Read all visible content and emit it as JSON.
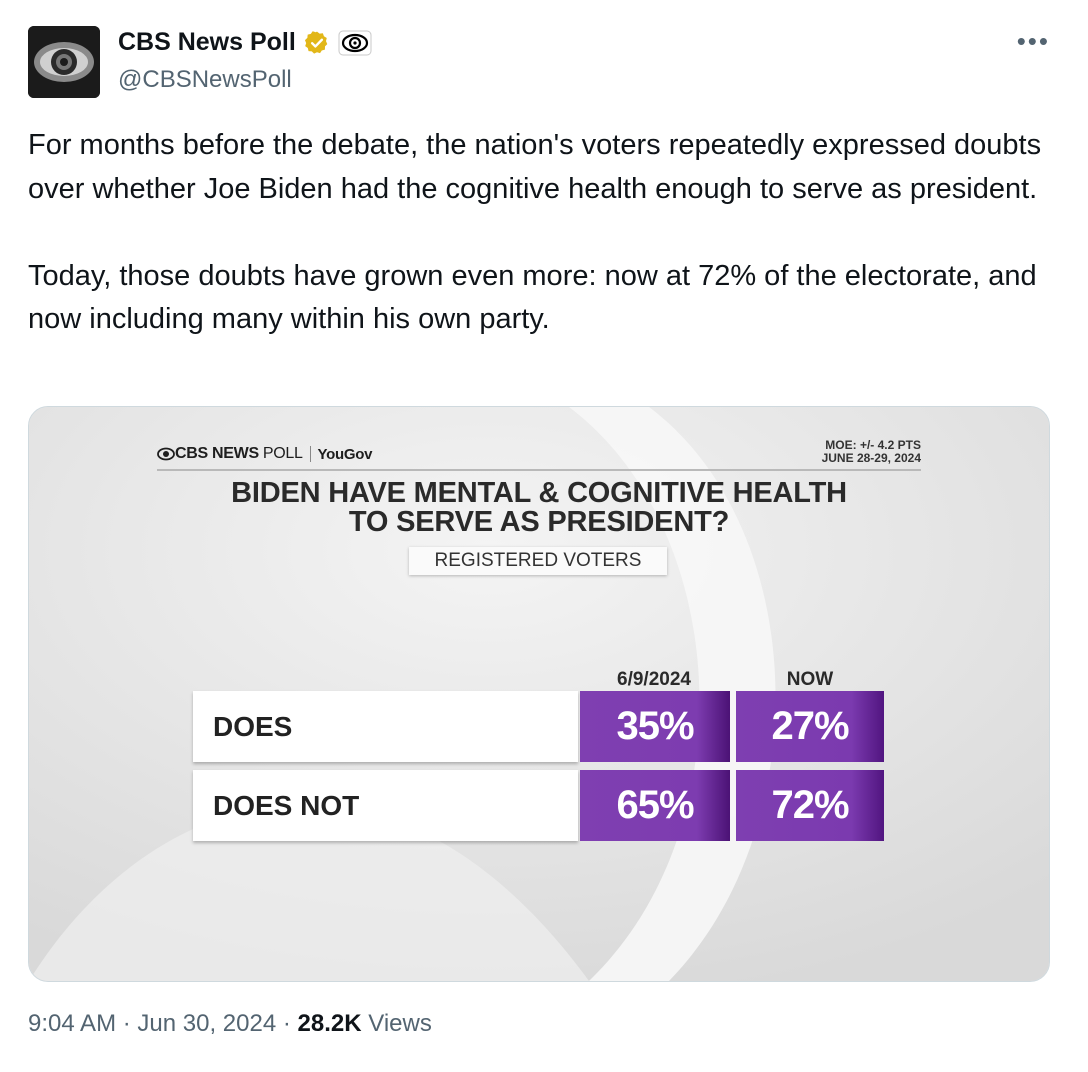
{
  "author": {
    "display_name": "CBS News Poll",
    "handle": "@CBSNewsPoll"
  },
  "tweet": {
    "text": "For months before the debate, the nation's voters repeatedly expressed doubts over whether Joe Biden had the cognitive health enough to serve as president.\n\nToday, those doubts have grown even more: now at 72% of the electorate, and now including many within his own party."
  },
  "graphic": {
    "brand_name": "CBS NEWS",
    "brand_poll": "POLL",
    "brand_partner": "YouGov",
    "moe_line1": "MOE: +/- 4.2 PTS",
    "moe_line2": "JUNE 28-29, 2024",
    "title": "BIDEN HAVE MENTAL & COGNITIVE HEALTH\nTO SERVE AS PRESIDENT?",
    "subtitle": "REGISTERED VOTERS"
  },
  "chart_data": {
    "type": "table",
    "title": "BIDEN HAVE MENTAL & COGNITIVE HEALTH TO SERVE AS PRESIDENT?",
    "subtitle": "REGISTERED VOTERS",
    "columns": [
      "6/9/2024",
      "NOW"
    ],
    "rows": [
      {
        "label": "DOES",
        "values": [
          "35%",
          "27%"
        ]
      },
      {
        "label": "DOES NOT",
        "values": [
          "65%",
          "72%"
        ]
      }
    ]
  },
  "meta": {
    "time": "9:04 AM",
    "date": "Jun 30, 2024",
    "views_count": "28.2K",
    "views_label": "Views"
  },
  "colors": {
    "verified_badge": "#e2b719",
    "bar_purple": "#7f3fb1",
    "secondary_text": "#536471"
  },
  "icons": {
    "verified": "verified-gold-badge",
    "affiliate": "cbs-eye-logo",
    "more": "more-horizontal"
  }
}
